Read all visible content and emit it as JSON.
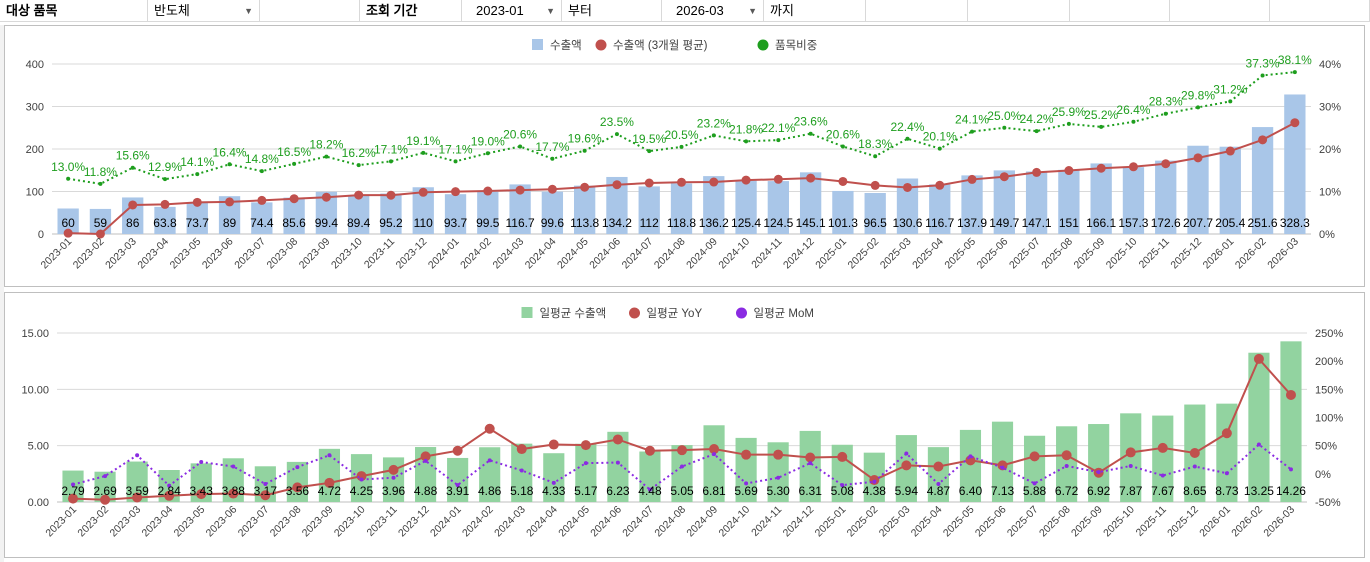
{
  "filters": {
    "item_label": "대상 품목",
    "item_value": "반도체",
    "period_label": "조회 기간",
    "start_value": "2023-01",
    "from_label": "부터",
    "end_value": "2026-03",
    "to_label": "까지"
  },
  "chart_data": [
    {
      "type": "bar",
      "legend": [
        "수출액",
        "수출액 (3개월 평균)",
        "품목비중"
      ],
      "legend_position": "top",
      "categories": [
        "2023-01",
        "2023-02",
        "2023-03",
        "2023-04",
        "2023-05",
        "2023-06",
        "2023-07",
        "2023-08",
        "2023-09",
        "2023-10",
        "2023-11",
        "2023-12",
        "2024-01",
        "2024-02",
        "2024-03",
        "2024-04",
        "2024-05",
        "2024-06",
        "2024-07",
        "2024-08",
        "2024-09",
        "2024-10",
        "2024-11",
        "2024-12",
        "2025-01",
        "2025-02",
        "2025-03",
        "2025-04",
        "2025-05",
        "2025-06",
        "2025-07",
        "2025-08",
        "2025-09",
        "2025-10",
        "2025-11",
        "2025-12",
        "2026-01",
        "2026-02",
        "2026-03"
      ],
      "series": [
        {
          "name": "수출액",
          "type": "bar",
          "axis": "left",
          "color": "#a9c6e8",
          "values": [
            60,
            59,
            86,
            63.8,
            73.7,
            89,
            74.4,
            85.6,
            99.4,
            89.4,
            95.2,
            110,
            93.7,
            99.5,
            116.7,
            99.6,
            113.8,
            134.2,
            112,
            118.8,
            136.2,
            125.4,
            124.5,
            145.1,
            101.3,
            96.5,
            130.6,
            116.7,
            137.9,
            149.7,
            147.1,
            151,
            166.1,
            157.3,
            172.6,
            207.7,
            205.4,
            251.6,
            328.3
          ],
          "labels": [
            "60",
            "59",
            "86",
            "63.8",
            "73.7",
            "89",
            "74.4",
            "85.6",
            "99.4",
            "89.4",
            "95.2",
            "110",
            "93.7",
            "99.5",
            "116.7",
            "99.6",
            "113.8",
            "134.2",
            "112",
            "118.8",
            "136.2",
            "125.4",
            "124.5",
            "145.1",
            "101.3",
            "96.5",
            "130.6",
            "116.7",
            "137.9",
            "149.7",
            "147.1",
            "151",
            "166.1",
            "157.3",
            "172.6",
            "207.7",
            "205.4",
            "251.6",
            "328.3"
          ]
        },
        {
          "name": "수출액 (3개월 평균)",
          "type": "line",
          "axis": "left",
          "color": "#c0504d",
          "values": [
            2,
            0,
            68.3,
            69.6,
            74.5,
            75.5,
            79,
            83,
            86.5,
            91.5,
            91.3,
            98.2,
            99.6,
            101.1,
            103.3,
            105.3,
            110,
            115.9,
            120,
            121.7,
            122.3,
            126.8,
            128.7,
            131.6,
            123.6,
            114.3,
            109.5,
            114.6,
            128.4,
            134.8,
            144.9,
            149.3,
            154.7,
            158.1,
            165.3,
            179.2,
            195.2,
            221.6,
            261.8
          ]
        },
        {
          "name": "품목비중",
          "type": "line-dotted",
          "axis": "right",
          "color": "#1e9e1e",
          "values": [
            13.0,
            11.8,
            15.6,
            12.9,
            14.1,
            16.4,
            14.8,
            16.5,
            18.2,
            16.2,
            17.1,
            19.1,
            17.1,
            19.0,
            20.6,
            17.7,
            19.6,
            23.5,
            19.5,
            20.5,
            23.2,
            21.8,
            22.1,
            23.6,
            20.6,
            18.3,
            22.4,
            20.1,
            24.1,
            25.0,
            24.2,
            25.9,
            25.2,
            26.4,
            28.3,
            29.8,
            31.2,
            37.3,
            38.1
          ],
          "labels": [
            "13.0%",
            "11.8%",
            "15.6%",
            "12.9%",
            "14.1%",
            "16.4%",
            "14.8%",
            "16.5%",
            "18.2%",
            "16.2%",
            "17.1%",
            "19.1%",
            "17.1%",
            "19.0%",
            "20.6%",
            "17.7%",
            "19.6%",
            "23.5%",
            "19.5%",
            "20.5%",
            "23.2%",
            "21.8%",
            "22.1%",
            "23.6%",
            "20.6%",
            "18.3%",
            "22.4%",
            "20.1%",
            "24.1%",
            "25.0%",
            "24.2%",
            "25.9%",
            "25.2%",
            "26.4%",
            "28.3%",
            "29.8%",
            "31.2%",
            "37.3%",
            "38.1%"
          ]
        }
      ],
      "ylim": [
        0,
        400
      ],
      "y_ticks": [
        "0",
        "100",
        "200",
        "300",
        "400"
      ],
      "y2lim": [
        0,
        40
      ],
      "y2_ticks": [
        "0%",
        "10%",
        "20%",
        "30%",
        "40%"
      ],
      "grid": true
    },
    {
      "type": "bar",
      "legend": [
        "일평균 수출액",
        "일평균 YoY",
        "일평균 MoM"
      ],
      "legend_position": "top",
      "categories": [
        "2023-01",
        "2023-02",
        "2023-03",
        "2023-04",
        "2023-05",
        "2023-06",
        "2023-07",
        "2023-08",
        "2023-09",
        "2023-10",
        "2023-11",
        "2023-12",
        "2024-01",
        "2024-02",
        "2024-03",
        "2024-04",
        "2024-05",
        "2024-06",
        "2024-07",
        "2024-08",
        "2024-09",
        "2024-10",
        "2024-11",
        "2024-12",
        "2025-01",
        "2025-02",
        "2025-03",
        "2025-04",
        "2025-05",
        "2025-06",
        "2025-07",
        "2025-08",
        "2025-09",
        "2025-10",
        "2025-11",
        "2025-12",
        "2026-01",
        "2026-02",
        "2026-03"
      ],
      "series": [
        {
          "name": "일평균 수출액",
          "type": "bar",
          "axis": "left",
          "color": "#92d3a0",
          "values": [
            2.79,
            2.69,
            3.59,
            2.84,
            3.43,
            3.88,
            3.17,
            3.56,
            4.72,
            4.25,
            3.96,
            4.88,
            3.91,
            4.86,
            5.18,
            4.33,
            5.17,
            6.23,
            4.48,
            5.05,
            6.81,
            5.69,
            5.3,
            6.31,
            5.08,
            4.38,
            5.94,
            4.87,
            6.4,
            7.13,
            5.88,
            6.72,
            6.92,
            7.87,
            7.67,
            8.65,
            8.73,
            13.25,
            14.26
          ],
          "labels": [
            "2.79",
            "2.69",
            "3.59",
            "2.84",
            "3.43",
            "3.88",
            "3.17",
            "3.56",
            "4.72",
            "4.25",
            "3.96",
            "4.88",
            "3.91",
            "4.86",
            "5.18",
            "4.33",
            "5.17",
            "6.23",
            "4.48",
            "5.05",
            "6.81",
            "5.69",
            "5.30",
            "6.31",
            "5.08",
            "4.38",
            "5.94",
            "4.87",
            "6.40",
            "7.13",
            "5.88",
            "6.72",
            "6.92",
            "7.87",
            "7.67",
            "8.65",
            "8.73",
            "13.25",
            "14.26"
          ]
        },
        {
          "name": "일평균 YoY",
          "type": "line",
          "axis": "right",
          "color": "#c0504d",
          "values": [
            -44,
            -46,
            -42,
            -39,
            -36,
            -35,
            -38,
            -24,
            -16,
            -4,
            7,
            31,
            41,
            80,
            44,
            52,
            51,
            61,
            41,
            42,
            44,
            34,
            34,
            29,
            30,
            -11,
            15,
            13,
            24,
            15,
            31,
            33,
            2,
            38,
            46,
            37,
            72,
            204,
            140
          ]
        },
        {
          "name": "일평균 MoM",
          "type": "line-dotted",
          "axis": "right",
          "color": "#8a2be2",
          "values": [
            -19,
            -4,
            33,
            -21,
            21,
            13,
            -18,
            12,
            33,
            -10,
            -7,
            23,
            -20,
            24,
            6,
            -16,
            19,
            20,
            -28,
            13,
            35,
            -17,
            -7,
            19,
            -20,
            -14,
            36,
            -18,
            31,
            11,
            -17,
            14,
            3,
            14,
            -3,
            13,
            1,
            52,
            8
          ]
        }
      ],
      "ylim": [
        0,
        15
      ],
      "y_ticks": [
        "0.00",
        "5.00",
        "10.00",
        "15.00"
      ],
      "y2lim": [
        -50,
        250
      ],
      "y2_ticks": [
        "-50%",
        "0%",
        "50%",
        "100%",
        "150%",
        "200%",
        "250%"
      ],
      "grid": true
    }
  ]
}
